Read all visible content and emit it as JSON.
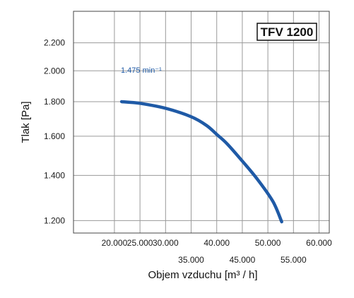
{
  "chart_data": {
    "type": "line",
    "badge": "TFV 1200",
    "xlabel": "Objem vzduchu [m³ / h]",
    "ylabel": "Tlak [Pa]",
    "xlim": [
      12000,
      62000
    ],
    "ylim": [
      1150,
      2450
    ],
    "y_scale": "log",
    "grid": true,
    "x_ticks": [
      {
        "value": 20000,
        "label": "20.000",
        "row": 1
      },
      {
        "value": 25000,
        "label": "25.000",
        "row": 1
      },
      {
        "value": 30000,
        "label": "30.000",
        "row": 1
      },
      {
        "value": 35000,
        "label": "35.000",
        "row": 2
      },
      {
        "value": 40000,
        "label": "40.000",
        "row": 1
      },
      {
        "value": 45000,
        "label": "45.000",
        "row": 2
      },
      {
        "value": 50000,
        "label": "50.000",
        "row": 1
      },
      {
        "value": 55000,
        "label": "55.000",
        "row": 2
      },
      {
        "value": 60000,
        "label": "60.000",
        "row": 1
      }
    ],
    "y_ticks": [
      {
        "value": 1200,
        "label": "1.200"
      },
      {
        "value": 1400,
        "label": "1.400"
      },
      {
        "value": 1600,
        "label": "1.600"
      },
      {
        "value": 1800,
        "label": "1.800"
      },
      {
        "value": 2000,
        "label": "2.000"
      },
      {
        "value": 2200,
        "label": "2.200"
      }
    ],
    "series": [
      {
        "name": "1.475 min⁻¹",
        "color": "#1f5aa6",
        "x": [
          21400,
          25000,
          30000,
          35000,
          38000,
          40000,
          42000,
          45000,
          48000,
          51000,
          52700
        ],
        "y": [
          1800,
          1790,
          1760,
          1710,
          1660,
          1610,
          1560,
          1470,
          1380,
          1280,
          1195
        ]
      }
    ]
  }
}
